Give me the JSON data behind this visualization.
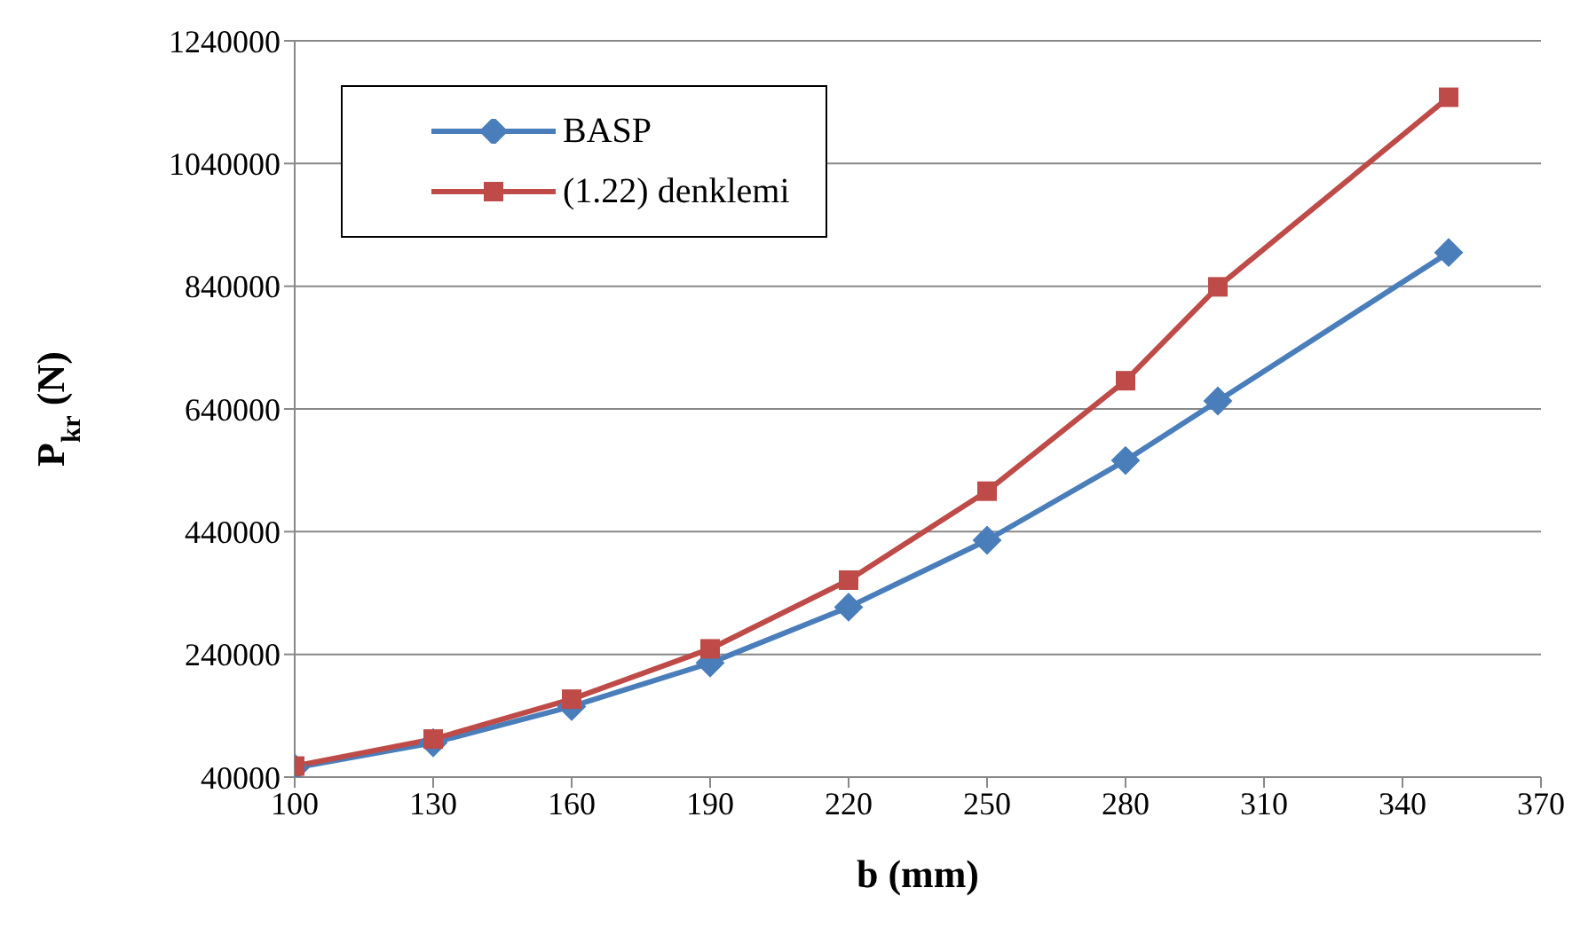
{
  "chart_data": {
    "type": "line",
    "xlabel": "b (mm)",
    "ylabel": "P$_{kr}$ (N)",
    "x": [
      100,
      130,
      160,
      190,
      220,
      250,
      280,
      300,
      350
    ],
    "series": [
      {
        "name": "BASP",
        "color": "#4a7ebb",
        "marker": "diamond",
        "values": [
          55000,
          96000,
          155000,
          226000,
          317000,
          426000,
          556000,
          653000,
          895000
        ]
      },
      {
        "name": "(1.22) denklemi",
        "color": "#be4b48",
        "marker": "square",
        "values": [
          58000,
          102000,
          167000,
          249000,
          361000,
          506000,
          686000,
          839000,
          1148000
        ]
      }
    ],
    "xlim": [
      100,
      370
    ],
    "xticks": [
      100,
      130,
      160,
      190,
      220,
      250,
      280,
      310,
      340,
      370
    ],
    "ylim": [
      40000,
      1240000
    ],
    "yticks": [
      40000,
      240000,
      440000,
      640000,
      840000,
      1040000,
      1240000
    ],
    "grid": "y",
    "legend": "top left",
    "line_style": "solid"
  }
}
